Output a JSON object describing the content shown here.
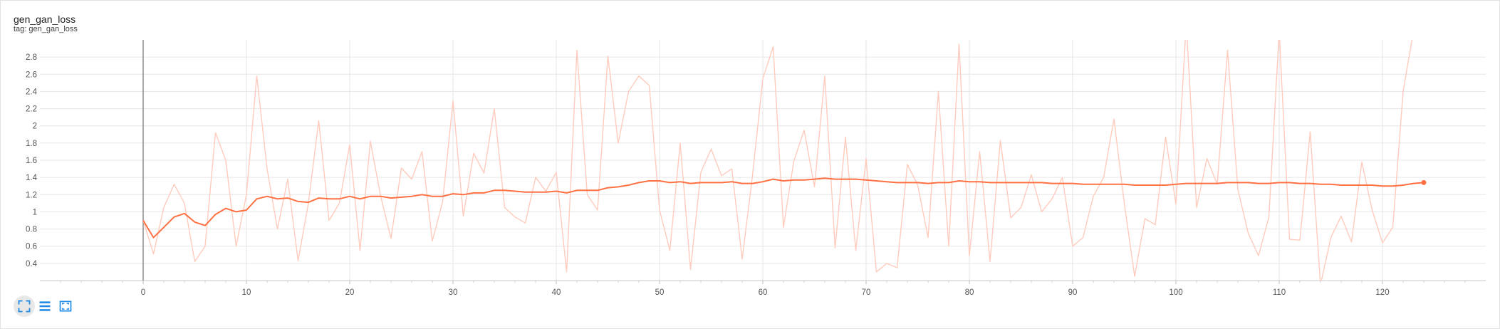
{
  "card": {
    "title": "gen_gan_loss",
    "subtitle": "tag: gen_gan_loss"
  },
  "toolbar": {
    "buttons": [
      {
        "icon": "fit-domain-icon",
        "active": true
      },
      {
        "icon": "toggle-log-scale-icon",
        "active": false
      },
      {
        "icon": "fit-to-data-icon",
        "active": false
      }
    ]
  },
  "chart_data": {
    "type": "line",
    "xlim": [
      -10,
      130
    ],
    "ylim": [
      0.2,
      3.0
    ],
    "x_ticks": [
      0,
      10,
      20,
      30,
      40,
      50,
      60,
      70,
      80,
      90,
      100,
      110,
      120
    ],
    "y_ticks": [
      0.4,
      0.6,
      0.8,
      1.0,
      1.2,
      1.4,
      1.6,
      1.8,
      2.0,
      2.2,
      2.4,
      2.6,
      2.8
    ],
    "y_tick_labels": [
      "0.4",
      "0.6",
      "0.8",
      "1",
      "1.2",
      "1.4",
      "1.6",
      "1.8",
      "2",
      "2.2",
      "2.4",
      "2.6",
      "2.8"
    ],
    "grid": true,
    "colors": {
      "raw": "#ffcbbd",
      "smoothed": "#ff7043"
    },
    "x": [
      0,
      1,
      2,
      3,
      4,
      5,
      6,
      7,
      8,
      9,
      10,
      11,
      12,
      13,
      14,
      15,
      16,
      17,
      18,
      19,
      20,
      21,
      22,
      23,
      24,
      25,
      26,
      27,
      28,
      29,
      30,
      31,
      32,
      33,
      34,
      35,
      36,
      37,
      38,
      39,
      40,
      41,
      42,
      43,
      44,
      45,
      46,
      47,
      48,
      49,
      50,
      51,
      52,
      53,
      54,
      55,
      56,
      57,
      58,
      59,
      60,
      61,
      62,
      63,
      64,
      65,
      66,
      67,
      68,
      69,
      70,
      71,
      72,
      73,
      74,
      75,
      76,
      77,
      78,
      79,
      80,
      81,
      82,
      83,
      84,
      85,
      86,
      87,
      88,
      89,
      90,
      91,
      92,
      93,
      94,
      95,
      96,
      97,
      98,
      99,
      100,
      101,
      102,
      103,
      104,
      105,
      106,
      107,
      108,
      109,
      110,
      111,
      112,
      113,
      114,
      115,
      116,
      117,
      118,
      119,
      120,
      121,
      122,
      123,
      124
    ],
    "series": [
      {
        "role": "raw",
        "values": [
          0.9,
          0.51,
          1.05,
          1.32,
          1.1,
          0.42,
          0.6,
          1.92,
          1.6,
          0.6,
          1.2,
          2.58,
          1.5,
          0.8,
          1.38,
          0.43,
          1.1,
          2.06,
          0.9,
          1.1,
          1.78,
          0.55,
          1.82,
          1.18,
          0.69,
          1.51,
          1.38,
          1.7,
          0.66,
          1.12,
          2.29,
          0.95,
          1.68,
          1.45,
          2.2,
          1.05,
          0.94,
          0.87,
          1.4,
          1.24,
          1.46,
          0.3,
          2.88,
          1.2,
          1.02,
          2.81,
          1.8,
          2.4,
          2.58,
          2.47,
          1.02,
          0.55,
          1.8,
          0.33,
          1.46,
          1.73,
          1.42,
          1.5,
          0.45,
          1.42,
          2.55,
          2.92,
          0.82,
          1.59,
          1.95,
          1.29,
          2.58,
          0.58,
          1.87,
          0.55,
          1.62,
          0.3,
          0.4,
          0.35,
          1.55,
          1.31,
          0.7,
          2.4,
          0.6,
          2.95,
          0.49,
          1.7,
          0.42,
          1.83,
          0.93,
          1.05,
          1.43,
          1.0,
          1.15,
          1.4,
          0.6,
          0.7,
          1.18,
          1.4,
          2.08,
          1.1,
          0.25,
          0.92,
          0.85,
          1.87,
          1.09,
          3.2,
          1.05,
          1.62,
          1.32,
          2.88,
          1.26,
          0.75,
          0.49,
          0.94,
          3.1,
          0.68,
          0.67,
          1.93,
          0.15,
          0.7,
          0.95,
          0.65,
          1.58,
          1.02,
          0.64,
          0.82,
          2.4,
          3.1,
          3.2
        ]
      },
      {
        "role": "smoothed",
        "values": [
          0.9,
          0.7,
          0.82,
          0.94,
          0.98,
          0.88,
          0.84,
          0.97,
          1.04,
          1.0,
          1.02,
          1.15,
          1.18,
          1.15,
          1.16,
          1.12,
          1.11,
          1.16,
          1.15,
          1.15,
          1.18,
          1.15,
          1.18,
          1.18,
          1.16,
          1.17,
          1.18,
          1.2,
          1.18,
          1.18,
          1.21,
          1.2,
          1.22,
          1.22,
          1.25,
          1.25,
          1.24,
          1.23,
          1.23,
          1.23,
          1.24,
          1.22,
          1.25,
          1.25,
          1.25,
          1.28,
          1.29,
          1.31,
          1.34,
          1.36,
          1.36,
          1.34,
          1.35,
          1.33,
          1.34,
          1.34,
          1.34,
          1.35,
          1.33,
          1.33,
          1.35,
          1.38,
          1.36,
          1.37,
          1.37,
          1.38,
          1.39,
          1.38,
          1.38,
          1.38,
          1.37,
          1.36,
          1.35,
          1.34,
          1.34,
          1.34,
          1.33,
          1.34,
          1.34,
          1.36,
          1.35,
          1.35,
          1.34,
          1.34,
          1.34,
          1.34,
          1.34,
          1.34,
          1.33,
          1.33,
          1.33,
          1.32,
          1.32,
          1.32,
          1.32,
          1.32,
          1.31,
          1.31,
          1.31,
          1.31,
          1.32,
          1.33,
          1.33,
          1.33,
          1.33,
          1.34,
          1.34,
          1.34,
          1.33,
          1.33,
          1.34,
          1.34,
          1.33,
          1.33,
          1.32,
          1.32,
          1.31,
          1.31,
          1.31,
          1.31,
          1.3,
          1.3,
          1.31,
          1.33,
          1.34
        ]
      }
    ]
  }
}
